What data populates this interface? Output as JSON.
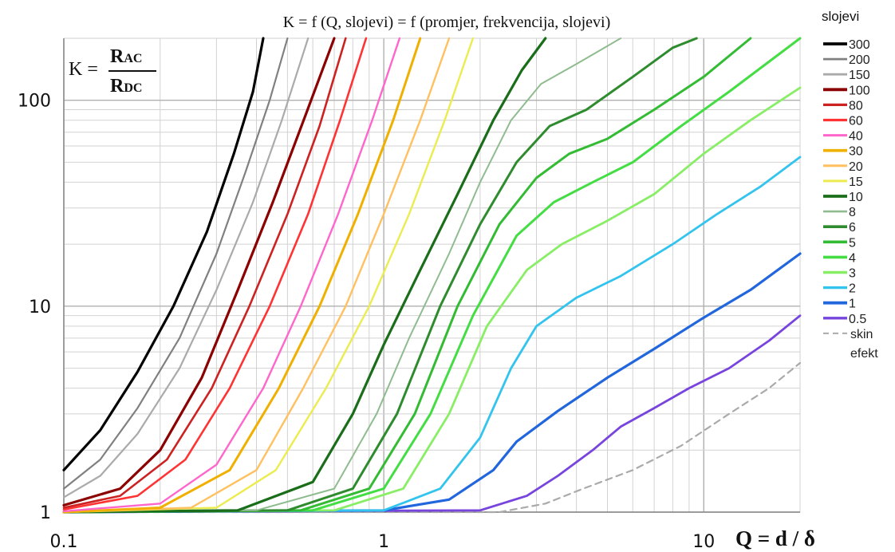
{
  "chart_data": {
    "type": "line",
    "title": "K = f (Q, slojevi) = f (promjer, frekvencija, slojevi)",
    "formula": {
      "lhs": "K =",
      "num_main": "R",
      "num_sub": "AC",
      "den_main": "R",
      "den_sub": "DC"
    },
    "xlabel": "Q = d / δ",
    "x_scale": "log",
    "y_scale": "log",
    "xlim": [
      0.1,
      20
    ],
    "ylim": [
      1,
      200
    ],
    "x_ticks": [
      "0.1",
      "1",
      "10"
    ],
    "y_ticks": [
      "1",
      "10",
      "100"
    ],
    "grid": true,
    "legend": {
      "title": "slojevi",
      "position": "right"
    },
    "skin_label": [
      "skin",
      "efekt"
    ],
    "series": [
      {
        "name": "300",
        "color": "#000000",
        "width": 3.2,
        "points": [
          [
            0.1,
            1.6
          ],
          [
            0.13,
            2.5
          ],
          [
            0.17,
            4.8
          ],
          [
            0.22,
            10
          ],
          [
            0.28,
            23
          ],
          [
            0.34,
            55
          ],
          [
            0.39,
            110
          ],
          [
            0.42,
            200
          ]
        ]
      },
      {
        "name": "200",
        "color": "#808080",
        "width": 2.2,
        "points": [
          [
            0.1,
            1.3
          ],
          [
            0.13,
            1.8
          ],
          [
            0.17,
            3.2
          ],
          [
            0.23,
            7
          ],
          [
            0.3,
            18
          ],
          [
            0.37,
            45
          ],
          [
            0.44,
            100
          ],
          [
            0.5,
            200
          ]
        ]
      },
      {
        "name": "150",
        "color": "#aaaaaa",
        "width": 2.2,
        "points": [
          [
            0.1,
            1.18
          ],
          [
            0.13,
            1.5
          ],
          [
            0.17,
            2.4
          ],
          [
            0.23,
            5
          ],
          [
            0.3,
            12
          ],
          [
            0.39,
            32
          ],
          [
            0.48,
            80
          ],
          [
            0.58,
            200
          ]
        ]
      },
      {
        "name": "100",
        "color": "#8b0000",
        "width": 3.2,
        "points": [
          [
            0.1,
            1.08
          ],
          [
            0.15,
            1.3
          ],
          [
            0.2,
            2
          ],
          [
            0.27,
            4.5
          ],
          [
            0.35,
            12
          ],
          [
            0.45,
            32
          ],
          [
            0.57,
            85
          ],
          [
            0.7,
            200
          ]
        ]
      },
      {
        "name": "80",
        "color": "#cc2222",
        "width": 2.6,
        "points": [
          [
            0.1,
            1.05
          ],
          [
            0.15,
            1.2
          ],
          [
            0.21,
            1.8
          ],
          [
            0.29,
            4
          ],
          [
            0.38,
            10
          ],
          [
            0.5,
            28
          ],
          [
            0.63,
            75
          ],
          [
            0.76,
            200
          ]
        ]
      },
      {
        "name": "60",
        "color": "#ff3333",
        "width": 2.6,
        "points": [
          [
            0.1,
            1.03
          ],
          [
            0.17,
            1.2
          ],
          [
            0.24,
            1.8
          ],
          [
            0.33,
            4
          ],
          [
            0.44,
            10
          ],
          [
            0.58,
            28
          ],
          [
            0.73,
            80
          ],
          [
            0.88,
            200
          ]
        ]
      },
      {
        "name": "40",
        "color": "#ff66cc",
        "width": 2.4,
        "points": [
          [
            0.1,
            1.01
          ],
          [
            0.2,
            1.1
          ],
          [
            0.3,
            1.7
          ],
          [
            0.42,
            4
          ],
          [
            0.55,
            10
          ],
          [
            0.72,
            28
          ],
          [
            0.92,
            80
          ],
          [
            1.12,
            200
          ]
        ]
      },
      {
        "name": "30",
        "color": "#f0b000",
        "width": 3.0,
        "points": [
          [
            0.1,
            1.0
          ],
          [
            0.2,
            1.05
          ],
          [
            0.33,
            1.6
          ],
          [
            0.47,
            4
          ],
          [
            0.63,
            10
          ],
          [
            0.83,
            28
          ],
          [
            1.07,
            80
          ],
          [
            1.3,
            200
          ]
        ]
      },
      {
        "name": "20",
        "color": "#ffc060",
        "width": 2.4,
        "points": [
          [
            0.1,
            1.0
          ],
          [
            0.25,
            1.05
          ],
          [
            0.4,
            1.6
          ],
          [
            0.56,
            4
          ],
          [
            0.76,
            10
          ],
          [
            1.0,
            28
          ],
          [
            1.3,
            80
          ],
          [
            1.6,
            200
          ]
        ]
      },
      {
        "name": "15",
        "color": "#ecec50",
        "width": 2.4,
        "points": [
          [
            0.1,
            1.0
          ],
          [
            0.3,
            1.05
          ],
          [
            0.46,
            1.6
          ],
          [
            0.66,
            4
          ],
          [
            0.9,
            10
          ],
          [
            1.2,
            28
          ],
          [
            1.55,
            80
          ],
          [
            1.9,
            200
          ]
        ]
      },
      {
        "name": "10",
        "color": "#1a6e1a",
        "width": 3.2,
        "points": [
          [
            0.1,
            1.0
          ],
          [
            0.35,
            1.02
          ],
          [
            0.6,
            1.4
          ],
          [
            0.8,
            3
          ],
          [
            1.0,
            6.5
          ],
          [
            1.3,
            15
          ],
          [
            1.7,
            35
          ],
          [
            2.2,
            80
          ],
          [
            2.7,
            140
          ],
          [
            3.2,
            200
          ]
        ]
      },
      {
        "name": "8",
        "color": "#8fbc8f",
        "width": 2.0,
        "points": [
          [
            0.1,
            1.0
          ],
          [
            0.4,
            1.02
          ],
          [
            0.7,
            1.3
          ],
          [
            0.95,
            3
          ],
          [
            1.2,
            7
          ],
          [
            1.6,
            18
          ],
          [
            2.0,
            40
          ],
          [
            2.5,
            80
          ],
          [
            3.1,
            120
          ],
          [
            4.0,
            150
          ],
          [
            5.5,
            200
          ]
        ]
      },
      {
        "name": "6",
        "color": "#2e8b2e",
        "width": 3.0,
        "points": [
          [
            0.1,
            1.0
          ],
          [
            0.5,
            1.02
          ],
          [
            0.8,
            1.3
          ],
          [
            1.1,
            3
          ],
          [
            1.5,
            10
          ],
          [
            2.0,
            25
          ],
          [
            2.6,
            50
          ],
          [
            3.3,
            75
          ],
          [
            4.3,
            90
          ],
          [
            6.0,
            130
          ],
          [
            8.0,
            180
          ],
          [
            9.5,
            200
          ]
        ]
      },
      {
        "name": "5",
        "color": "#33bb33",
        "width": 3.0,
        "points": [
          [
            0.1,
            1.0
          ],
          [
            0.55,
            1.02
          ],
          [
            0.9,
            1.3
          ],
          [
            1.25,
            3
          ],
          [
            1.7,
            10
          ],
          [
            2.3,
            25
          ],
          [
            3.0,
            42
          ],
          [
            3.8,
            55
          ],
          [
            5.0,
            65
          ],
          [
            7.0,
            90
          ],
          [
            10,
            130
          ],
          [
            14,
            200
          ]
        ]
      },
      {
        "name": "4",
        "color": "#44dd44",
        "width": 3.0,
        "points": [
          [
            0.1,
            1.0
          ],
          [
            0.6,
            1.02
          ],
          [
            1.0,
            1.3
          ],
          [
            1.4,
            3
          ],
          [
            1.9,
            9
          ],
          [
            2.6,
            22
          ],
          [
            3.4,
            32
          ],
          [
            4.5,
            40
          ],
          [
            6.0,
            50
          ],
          [
            8.5,
            75
          ],
          [
            12,
            110
          ],
          [
            20,
            200
          ]
        ]
      },
      {
        "name": "3",
        "color": "#88ee66",
        "width": 2.8,
        "points": [
          [
            0.1,
            1.0
          ],
          [
            0.7,
            1.02
          ],
          [
            1.15,
            1.3
          ],
          [
            1.6,
            3
          ],
          [
            2.1,
            8
          ],
          [
            2.8,
            15
          ],
          [
            3.6,
            20
          ],
          [
            5.0,
            26
          ],
          [
            7.0,
            35
          ],
          [
            10,
            55
          ],
          [
            14,
            80
          ],
          [
            20,
            115
          ]
        ]
      },
      {
        "name": "2",
        "color": "#33c4ee",
        "width": 2.8,
        "points": [
          [
            0.1,
            1.0
          ],
          [
            1.0,
            1.02
          ],
          [
            1.5,
            1.3
          ],
          [
            2.0,
            2.3
          ],
          [
            2.5,
            5
          ],
          [
            3.0,
            8
          ],
          [
            4.0,
            11
          ],
          [
            5.5,
            14
          ],
          [
            8.0,
            20
          ],
          [
            11,
            28
          ],
          [
            15,
            38
          ],
          [
            20,
            53
          ]
        ]
      },
      {
        "name": "1",
        "color": "#2266dd",
        "width": 3.2,
        "points": [
          [
            0.1,
            1.0
          ],
          [
            1.0,
            1.02
          ],
          [
            1.6,
            1.15
          ],
          [
            2.2,
            1.6
          ],
          [
            2.6,
            2.2
          ],
          [
            3.5,
            3.1
          ],
          [
            5.0,
            4.5
          ],
          [
            7.0,
            6.2
          ],
          [
            10,
            8.8
          ],
          [
            14,
            12
          ],
          [
            20,
            18
          ]
        ]
      },
      {
        "name": "0.5",
        "color": "#7744dd",
        "width": 2.8,
        "points": [
          [
            0.1,
            1.0
          ],
          [
            2.0,
            1.02
          ],
          [
            2.8,
            1.2
          ],
          [
            3.5,
            1.5
          ],
          [
            4.5,
            2.0
          ],
          [
            5.5,
            2.6
          ],
          [
            7.0,
            3.2
          ],
          [
            9.0,
            4.0
          ],
          [
            12,
            5.0
          ],
          [
            16,
            6.8
          ],
          [
            20,
            9.0
          ]
        ]
      },
      {
        "name": "skin efekt",
        "color": "#aaaaaa",
        "width": 2.2,
        "dash": "8,6",
        "points": [
          [
            0.1,
            1.0
          ],
          [
            2.3,
            1.0
          ],
          [
            3.2,
            1.1
          ],
          [
            4.2,
            1.3
          ],
          [
            6.0,
            1.6
          ],
          [
            8.5,
            2.1
          ],
          [
            12,
            3.0
          ],
          [
            16,
            4.0
          ],
          [
            20,
            5.3
          ]
        ]
      }
    ]
  }
}
